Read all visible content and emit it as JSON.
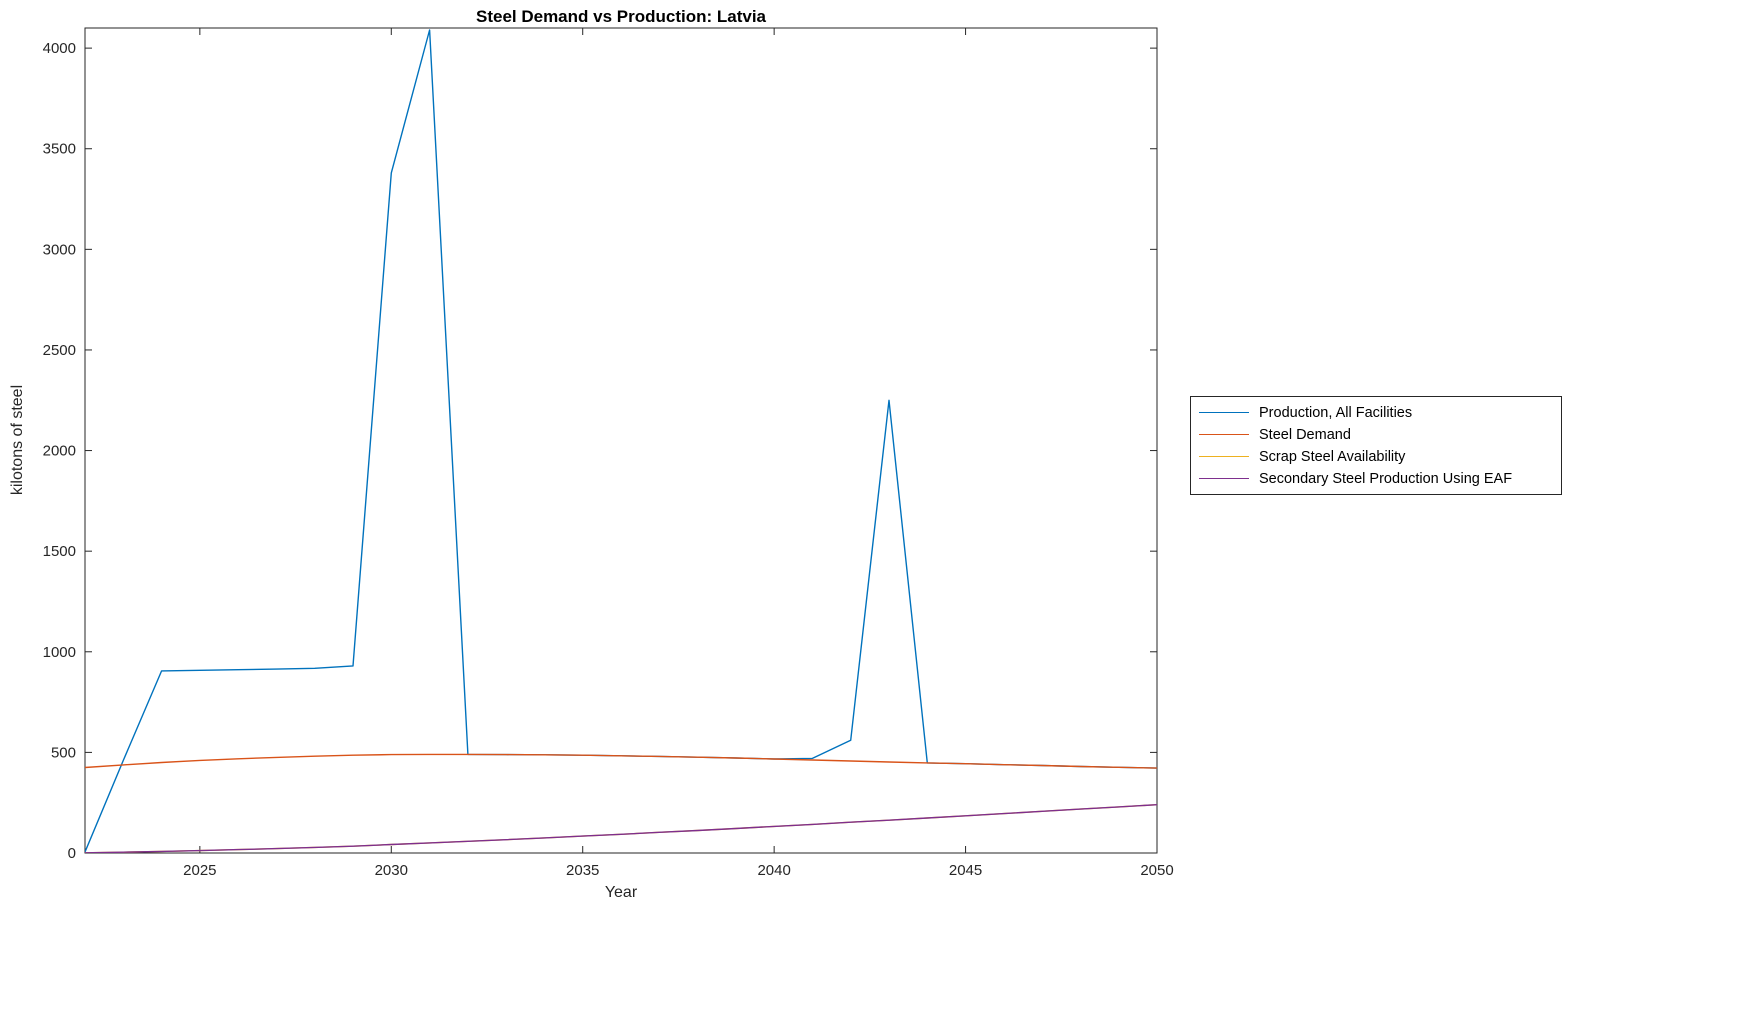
{
  "figure": {
    "background": "#ffffff",
    "axis_color": "#262626"
  },
  "chart_data": {
    "type": "line",
    "title": "Steel Demand vs Production: Latvia",
    "xlabel": "Year",
    "ylabel": "kilotons of steel",
    "xlim": [
      2022,
      2050
    ],
    "ylim": [
      0,
      4100
    ],
    "xticks": [
      2025,
      2030,
      2035,
      2040,
      2045,
      2050
    ],
    "yticks": [
      0,
      500,
      1000,
      1500,
      2000,
      2500,
      3000,
      3500,
      4000
    ],
    "grid": false,
    "legend_position": "right-outside",
    "x": [
      2022,
      2023,
      2024,
      2025,
      2026,
      2027,
      2028,
      2029,
      2030,
      2031,
      2032,
      2033,
      2034,
      2035,
      2036,
      2037,
      2038,
      2039,
      2040,
      2041,
      2042,
      2043,
      2044,
      2045,
      2046,
      2047,
      2048,
      2049,
      2050
    ],
    "series": [
      {
        "name": "Production, All Facilities",
        "color": "#0072BD",
        "values": [
          5,
          460,
          905,
          908,
          911,
          914,
          918,
          930,
          3380,
          4090,
          490,
          489,
          488,
          486,
          483,
          480,
          476,
          472,
          467,
          470,
          560,
          2250,
          448,
          444,
          439,
          435,
          430,
          426,
          422
        ]
      },
      {
        "name": "Steel Demand",
        "color": "#D95319",
        "values": [
          425,
          438,
          450,
          460,
          468,
          475,
          481,
          486,
          489,
          490,
          490,
          489,
          488,
          486,
          483,
          480,
          476,
          472,
          467,
          462,
          457,
          452,
          448,
          444,
          439,
          435,
          430,
          426,
          422
        ]
      },
      {
        "name": "Scrap Steel Availability",
        "color": "#EDB120",
        "values": [
          1,
          4,
          8,
          12,
          17,
          22,
          28,
          34,
          42,
          50,
          58,
          66,
          75,
          84,
          93,
          103,
          112,
          122,
          132,
          142,
          153,
          163,
          174,
          185,
          196,
          207,
          218,
          229,
          240
        ]
      },
      {
        "name": "Secondary Steel Production Using EAF",
        "color": "#7E2F8E",
        "values": [
          1,
          4,
          8,
          12,
          17,
          22,
          28,
          34,
          42,
          50,
          58,
          66,
          75,
          84,
          93,
          103,
          112,
          122,
          132,
          142,
          153,
          163,
          174,
          185,
          196,
          207,
          218,
          229,
          240
        ]
      }
    ]
  }
}
